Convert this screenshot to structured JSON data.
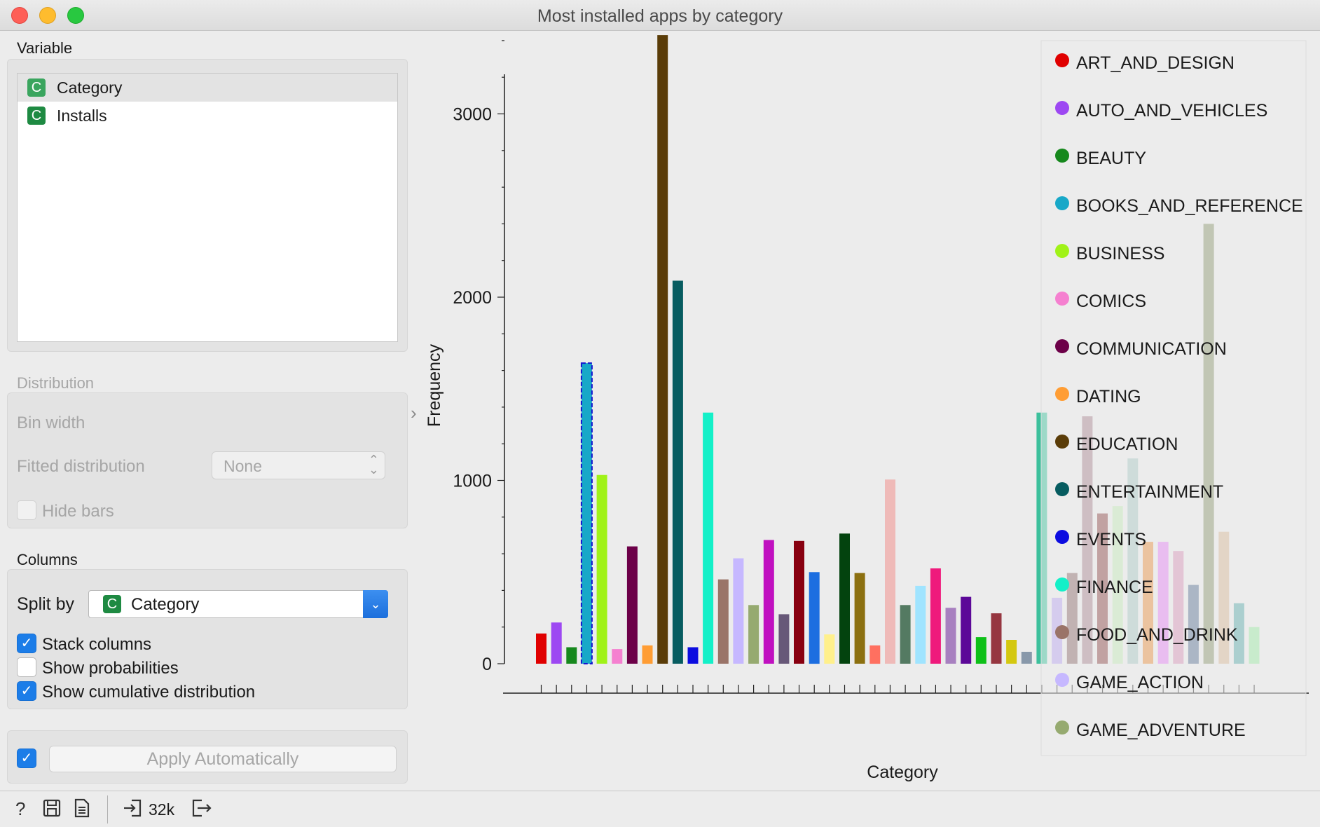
{
  "window": {
    "title": "Most installed apps by category"
  },
  "variable": {
    "label": "Variable",
    "items": [
      {
        "badge": "C",
        "label": "Category",
        "selected": true
      },
      {
        "badge": "C",
        "label": "Installs",
        "selected": false
      }
    ]
  },
  "distribution": {
    "label": "Distribution",
    "bin_width": "Bin width",
    "fitted_label": "Fitted distribution",
    "fitted_value": "None",
    "hide_bars": "Hide bars"
  },
  "columns": {
    "label": "Columns",
    "split_by": "Split by",
    "split_value": "Category",
    "split_badge": "C",
    "stack": "Stack columns",
    "probs": "Show probabilities",
    "cumulative": "Show cumulative distribution"
  },
  "apply": {
    "label": "Apply Automatically"
  },
  "status": {
    "count": "32k"
  },
  "colors": {
    "accent": "#1c7de8",
    "badge": "#3aa55e"
  },
  "chart_data": {
    "type": "bar",
    "xlabel": "Category",
    "ylabel": "Frequency",
    "ylim": [
      0,
      3420
    ],
    "yticks": [
      0,
      1000,
      2000,
      3000
    ],
    "grid": false,
    "legend_placement": "top-right",
    "selected_index": 3,
    "categories": [
      "ART_AND_DESIGN",
      "AUTO_AND_VEHICLES",
      "BEAUTY",
      "BOOKS_AND_REFERENCE",
      "BUSINESS",
      "COMICS",
      "COMMUNICATION",
      "DATING",
      "EDUCATION",
      "ENTERTAINMENT",
      "EVENTS",
      "FINANCE",
      "FOOD_AND_DRINK",
      "GAME_ACTION",
      "GAME_ADVENTURE",
      "",
      "",
      "",
      "",
      "",
      "",
      "",
      "",
      "",
      "",
      "",
      "",
      "",
      "",
      "",
      "",
      "",
      "",
      "",
      "",
      "",
      "",
      "",
      "",
      "",
      "",
      "",
      "",
      "",
      "",
      "",
      "",
      ""
    ],
    "values": [
      165,
      225,
      90,
      1640,
      1030,
      80,
      640,
      100,
      3430,
      2090,
      90,
      1370,
      460,
      575,
      320,
      675,
      270,
      670,
      500,
      160,
      710,
      495,
      100,
      1005,
      320,
      425,
      520,
      305,
      365,
      145,
      275,
      130,
      65,
      1370,
      360,
      495,
      1350,
      820,
      860,
      1120,
      665,
      665,
      615,
      430,
      2400,
      720,
      330,
      200
    ],
    "colors": [
      "#e00000",
      "#9d48f2",
      "#16881d",
      "#18a8c8",
      "#a0f218",
      "#f580d0",
      "#6c0048",
      "#ff9d34",
      "#5a3c08",
      "#075c60",
      "#0c0ce0",
      "#14f0c8",
      "#9a7468",
      "#c6b8ff",
      "#96aa70",
      "#c010c0",
      "#675878",
      "#880010",
      "#1c6ee0",
      "#fff08c",
      "#03430e",
      "#8c7010",
      "#ff7060",
      "#efbab8",
      "#547a62",
      "#a0e4ff",
      "#ef1a7c",
      "#a880c0",
      "#5c0898",
      "#0ec018",
      "#963640",
      "#d4c810",
      "#8898aa",
      "#3cc09c",
      "#b8a4f0",
      "#8c6c6c",
      "#a88690",
      "#8c4848",
      "#c4e8b8",
      "#a8c8c4",
      "#e89040",
      "#e484f4",
      "#d894b8",
      "#5c7494",
      "#8c9870",
      "#d8b898",
      "#5cacac",
      "#9ce8a4"
    ]
  }
}
